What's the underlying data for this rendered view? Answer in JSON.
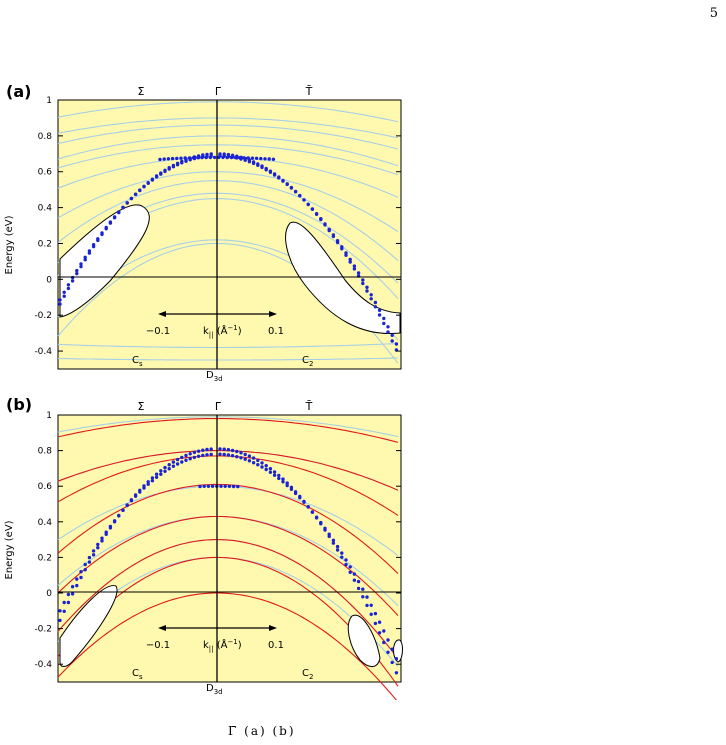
{
  "page_number": "5",
  "footer_fragment": "Γ̄         (a)         (b)",
  "colors": {
    "background": "#fff9b0",
    "bulk_band": "#a8cfe6",
    "surface_band": "#e01a1a",
    "dots": "#1a24d4",
    "gap": "#ffffff",
    "axis": "#000000"
  },
  "panels": [
    {
      "label": "(a)",
      "ylabel": "Energy (eV)",
      "top_labels": [
        "Σ̄",
        "Γ̄",
        "T̄"
      ],
      "yticks": [
        "1",
        "0.8",
        "0.6",
        "0.4",
        "0.2",
        "0",
        "-0.2",
        "-0.4"
      ],
      "arrow_left": "−0.1",
      "arrow_right": "0.1",
      "k_label": "k",
      "k_sub": "||",
      "k_unit": " (Å",
      "k_sup": "−1",
      "k_close": ")",
      "sym_left": "C",
      "sym_left_sub": "s",
      "sym_right": "C",
      "sym_right_sub": "2",
      "sym_center": "D",
      "sym_center_sub": "3d"
    },
    {
      "label": "(b)",
      "ylabel": "Energy (eV)",
      "top_labels": [
        "Σ̄",
        "Γ̄",
        "T̄"
      ],
      "yticks": [
        "1",
        "0.8",
        "0.6",
        "0.4",
        "0.2",
        "0",
        "-0.2",
        "-0.4"
      ],
      "arrow_left": "−0.1",
      "arrow_right": "0.1",
      "k_label": "k",
      "k_sub": "||",
      "k_unit": " (Å",
      "k_sup": "−1",
      "k_close": ")",
      "sym_left": "C",
      "sym_left_sub": "s",
      "sym_right": "C",
      "sym_right_sub": "2",
      "sym_center": "D",
      "sym_center_sub": "3d"
    }
  ]
}
